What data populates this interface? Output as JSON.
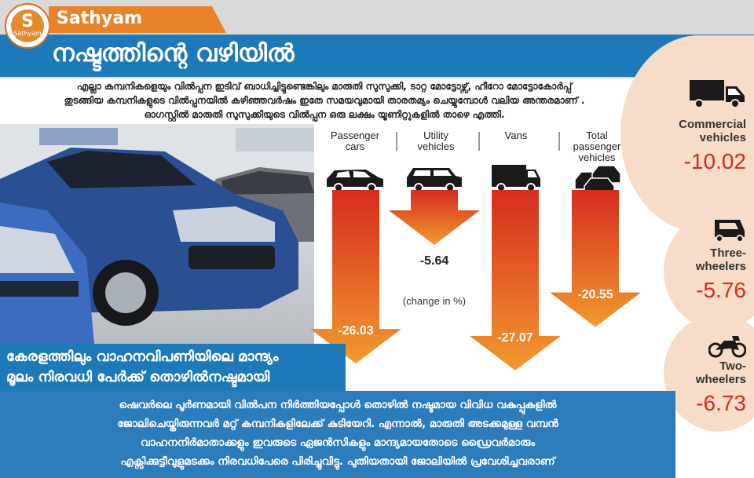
{
  "brand": "Sathyam",
  "logo_text": "S",
  "logo_sub": "Sathyam",
  "headline": "നഷ്ടത്തിന്റെ വഴിയിൽ",
  "intro_lines": [
    "എല്ലാ കമ്പനികളെയും വിൽപ്പന ഇടിവ് ബാധിച്ചിട്ടുണ്ടെങ്കിലും മാരുതി സുസുക്കി, ടാറ്റ മോട്ടോഴ്സ്, ഹീറോ മോട്ടോകോർപ്പ്",
    "തുടങ്ങിയ കമ്പനികളുടെ വിൽപ്പനയിൽ കഴിഞ്ഞവർഷം ഇതേ സമയവുമായി താരതമ്യം ചെയ്യുമ്പോൾ വലിയ അന്തരമാണ് .",
    "ഓഗസ്റ്റിൽ മാരുതി സുസുക്കിയുടെ വിൽപ്പന ഒരു ലക്ഷം യൂണിറ്റുകളിൽ താഴെ എത്തി."
  ],
  "kerala_lines": [
    "കേരളത്തിലും വാഹനവിപണിയിലെ മാന്ദ്യം",
    "മൂലം നിരവധി പേർക്ക് തൊഴിൽനഷ്ടമായി"
  ],
  "bottom_lines": [
    "ഷെവർലെ പൂർണമായി വിൽപന നിർത്തിയപ്പോൾ തൊഴിൽ നഷ്ടമായ വിവിധ വകുപ്പുകളിൽ",
    "ജോലിചെയ്തിരുന്നവർ മറ്റ് കമ്പനികളിലേക്ക് കുടിയേറി.  എന്നാൽ, മാരുതി അടക്കമുള്ള വമ്പൻ",
    "വാഹനനിർമാതാക്കളും ഇവരുടെ ഏജൻസികളും മാന്ദ്യമായതോടെ ഡ്രൈവർമാരും",
    "എക്സിക്കുട്ടീവുളുമടക്കം നിരവധിപേരെ പിരിച്ചുവിട്ടു.  പുതിയതായി ജോലിയിൽ പ്രവേശിച്ചവരാണ്"
  ],
  "chart_data": {
    "type": "bar",
    "title": "",
    "unit_note": "(change in %)",
    "categories": [
      "Passenger cars",
      "Utility vehicles",
      "Vans",
      "Total passenger vehicles"
    ],
    "values": [
      -26.03,
      -5.64,
      -27.07,
      -20.55
    ],
    "value_labels": [
      "-26.03",
      "-5.64",
      "-27.07",
      "-20.55"
    ],
    "category_lines": [
      [
        "Passenger",
        "cars"
      ],
      [
        "Utility",
        "vehicles"
      ],
      [
        "Vans"
      ],
      [
        "Total",
        "passenger",
        "vehicles"
      ]
    ],
    "side_categories": [
      {
        "lines": [
          "Commercial",
          "vehicles"
        ],
        "value": -10.02,
        "value_label": "-10.02",
        "icon": "truck-icon"
      },
      {
        "lines": [
          "Three-",
          "wheelers"
        ],
        "value": -5.76,
        "value_label": "-5.76",
        "icon": "auto-rickshaw-icon"
      },
      {
        "lines": [
          "Two-",
          "wheelers"
        ],
        "value": -6.73,
        "value_label": "-6.73",
        "icon": "motorcycle-icon"
      }
    ],
    "colors": {
      "arrow_top": "#d62b1f",
      "arrow_bottom": "#f29a2e",
      "value_text": "#d62b1f",
      "accent": "#1e79b8"
    }
  }
}
